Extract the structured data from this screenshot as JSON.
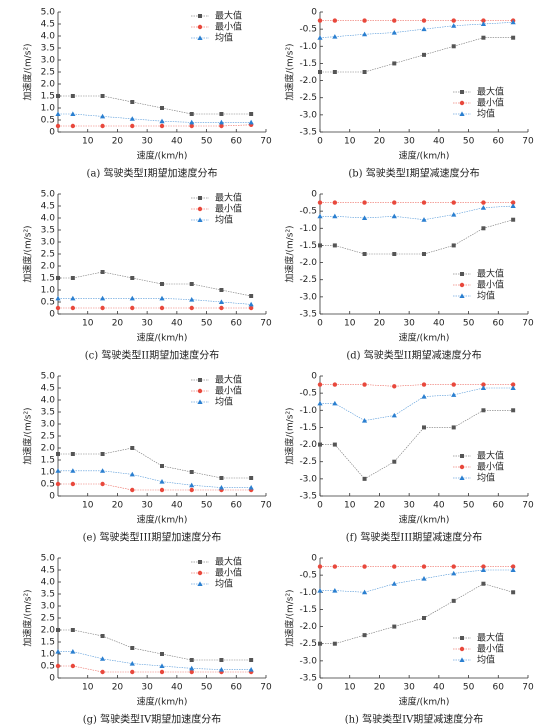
{
  "chart_data": [
    {
      "type": "line",
      "caption": "(a) 驾驶类型I期望加速度分布",
      "xlabel": "速度/(km/h)",
      "ylabel": "加速度/(m/s²)",
      "legend": "upper right",
      "x": [
        0,
        5,
        15,
        25,
        35,
        45,
        55,
        65
      ],
      "xlim": [
        0,
        70
      ],
      "xticks": [
        10,
        20,
        30,
        40,
        50,
        60,
        70
      ],
      "ylim": [
        0,
        5
      ],
      "yticks": [
        0,
        0.5,
        {
          "value": 1,
          "label": "1.0"
        },
        1.5,
        {
          "value": 2,
          "label": "2.0"
        },
        2.5,
        {
          "value": 3,
          "label": "3.0"
        },
        3.5,
        {
          "value": 4,
          "label": "4.0"
        },
        4.5,
        {
          "value": 5,
          "label": "5.0"
        }
      ],
      "series": [
        {
          "name": "最大值",
          "color": "#555555",
          "values": [
            1.5,
            1.5,
            1.5,
            1.25,
            1.0,
            0.75,
            0.75,
            0.75
          ]
        },
        {
          "name": "最小值",
          "color": "#e8483c",
          "values": [
            0.25,
            0.25,
            0.25,
            0.25,
            0.25,
            0.25,
            0.25,
            0.3
          ]
        },
        {
          "name": "均值",
          "color": "#2a7fd0",
          "values": [
            0.75,
            0.75,
            0.65,
            0.55,
            0.45,
            0.4,
            0.4,
            0.4
          ]
        }
      ]
    },
    {
      "type": "line",
      "caption": "(b) 驾驶类型I期望减速度分布",
      "xlabel": "速度/(km/h)",
      "ylabel": "加速度/(m/s²)",
      "legend": "lower right",
      "x": [
        0,
        5,
        15,
        25,
        35,
        45,
        55,
        65
      ],
      "xlim": [
        0,
        70
      ],
      "xticks": [
        0,
        10,
        20,
        30,
        40,
        50,
        60,
        70
      ],
      "ylim": [
        -3.5,
        0
      ],
      "yticks": [
        0,
        -0.5,
        {
          "value": -1,
          "label": "-1.0"
        },
        -1.5,
        {
          "value": -2,
          "label": "-2.0"
        },
        -2.5,
        {
          "value": -3,
          "label": "-3.0"
        },
        -3.5
      ],
      "series": [
        {
          "name": "最大值",
          "color": "#555555",
          "values": [
            -1.75,
            -1.75,
            -1.75,
            -1.5,
            -1.25,
            -1.0,
            -0.75,
            -0.75
          ]
        },
        {
          "name": "最小值",
          "color": "#e8483c",
          "values": [
            -0.25,
            -0.25,
            -0.25,
            -0.25,
            -0.25,
            -0.25,
            -0.25,
            -0.25
          ]
        },
        {
          "name": "均值",
          "color": "#2a7fd0",
          "values": [
            -0.75,
            -0.72,
            -0.65,
            -0.6,
            -0.5,
            -0.4,
            -0.35,
            -0.3
          ]
        }
      ]
    },
    {
      "type": "line",
      "caption": "(c) 驾驶类型II期望加速度分布",
      "xlabel": "速度/(km/h)",
      "ylabel": "加速度/(m/s²)",
      "legend": "upper right",
      "x": [
        0,
        5,
        15,
        25,
        35,
        45,
        55,
        65
      ],
      "xlim": [
        0,
        70
      ],
      "xticks": [
        10,
        20,
        30,
        40,
        50,
        60,
        70
      ],
      "ylim": [
        0,
        5
      ],
      "yticks": [
        0,
        0.5,
        {
          "value": 1,
          "label": "1.0"
        },
        1.5,
        {
          "value": 2,
          "label": "2.0"
        },
        2.5,
        {
          "value": 3,
          "label": "3.0"
        },
        3.5,
        {
          "value": 4,
          "label": "4.0"
        },
        4.5,
        {
          "value": 5,
          "label": "5.0"
        }
      ],
      "series": [
        {
          "name": "最大值",
          "color": "#555555",
          "values": [
            1.5,
            1.5,
            1.75,
            1.5,
            1.25,
            1.25,
            1.0,
            0.75
          ]
        },
        {
          "name": "最小值",
          "color": "#e8483c",
          "values": [
            0.25,
            0.25,
            0.25,
            0.25,
            0.25,
            0.25,
            0.25,
            0.25
          ]
        },
        {
          "name": "均值",
          "color": "#2a7fd0",
          "values": [
            0.65,
            0.65,
            0.65,
            0.65,
            0.65,
            0.6,
            0.5,
            0.4
          ]
        }
      ]
    },
    {
      "type": "line",
      "caption": "(d) 驾驶类型II期望减速度分布",
      "xlabel": "速度/(km/h)",
      "ylabel": "加速度/(m/s²)",
      "legend": "lower right",
      "x": [
        0,
        5,
        15,
        25,
        35,
        45,
        55,
        65
      ],
      "xlim": [
        0,
        70
      ],
      "xticks": [
        0,
        10,
        20,
        30,
        40,
        50,
        60,
        70
      ],
      "ylim": [
        -3.5,
        0
      ],
      "yticks": [
        0,
        -0.5,
        {
          "value": -1,
          "label": "-1.0"
        },
        -1.5,
        {
          "value": -2,
          "label": "-2.0"
        },
        -2.5,
        {
          "value": -3,
          "label": "-3.0"
        },
        -3.5
      ],
      "series": [
        {
          "name": "最大值",
          "color": "#555555",
          "values": [
            -1.5,
            -1.5,
            -1.75,
            -1.75,
            -1.75,
            -1.5,
            -1.0,
            -0.75
          ]
        },
        {
          "name": "最小值",
          "color": "#e8483c",
          "values": [
            -0.25,
            -0.25,
            -0.25,
            -0.25,
            -0.25,
            -0.25,
            -0.25,
            -0.25
          ]
        },
        {
          "name": "均值",
          "color": "#2a7fd0",
          "values": [
            -0.65,
            -0.65,
            -0.7,
            -0.65,
            -0.75,
            -0.6,
            -0.4,
            -0.35
          ]
        }
      ]
    },
    {
      "type": "line",
      "caption": "(e) 驾驶类型III期望加速度分布",
      "xlabel": "速度/(km/h)",
      "ylabel": "加速度/(m/s²)",
      "legend": "upper right",
      "x": [
        0,
        5,
        15,
        25,
        35,
        45,
        55,
        65
      ],
      "xlim": [
        0,
        70
      ],
      "xticks": [
        10,
        20,
        30,
        40,
        50,
        60,
        70
      ],
      "ylim": [
        0,
        5
      ],
      "yticks": [
        0,
        0.5,
        {
          "value": 1,
          "label": "1.0"
        },
        1.5,
        {
          "value": 2,
          "label": "2.0"
        },
        2.5,
        {
          "value": 3,
          "label": "3.0"
        },
        3.5,
        {
          "value": 4,
          "label": "4.0"
        },
        4.5,
        {
          "value": 5,
          "label": "5.0"
        }
      ],
      "series": [
        {
          "name": "最大值",
          "color": "#555555",
          "values": [
            1.75,
            1.75,
            1.75,
            2.0,
            1.25,
            1.0,
            0.75,
            0.75
          ]
        },
        {
          "name": "最小值",
          "color": "#e8483c",
          "values": [
            0.5,
            0.5,
            0.5,
            0.25,
            0.25,
            0.25,
            0.25,
            0.25
          ]
        },
        {
          "name": "均值",
          "color": "#2a7fd0",
          "values": [
            1.05,
            1.05,
            1.05,
            0.9,
            0.6,
            0.45,
            0.35,
            0.35
          ]
        }
      ]
    },
    {
      "type": "line",
      "caption": "(f) 驾驶类型III期望减速度分布",
      "xlabel": "速度/(km/h)",
      "ylabel": "加速度/(m/s²)",
      "legend": "lower right",
      "x": [
        0,
        5,
        15,
        25,
        35,
        45,
        55,
        65
      ],
      "xlim": [
        0,
        70
      ],
      "xticks": [
        0,
        10,
        20,
        30,
        40,
        50,
        60,
        70
      ],
      "ylim": [
        -3.5,
        0
      ],
      "yticks": [
        0,
        -0.5,
        {
          "value": -1,
          "label": "-1.0"
        },
        -1.5,
        {
          "value": -2,
          "label": "-2.0"
        },
        -2.5,
        {
          "value": -3,
          "label": "-3.0"
        },
        -3.5
      ],
      "series": [
        {
          "name": "最大值",
          "color": "#555555",
          "values": [
            -2.0,
            -2.0,
            -3.0,
            -2.5,
            -1.5,
            -1.5,
            -1.0,
            -1.0
          ]
        },
        {
          "name": "最小值",
          "color": "#e8483c",
          "values": [
            -0.25,
            -0.25,
            -0.25,
            -0.3,
            -0.25,
            -0.25,
            -0.25,
            -0.25
          ]
        },
        {
          "name": "均值",
          "color": "#2a7fd0",
          "values": [
            -0.8,
            -0.8,
            -1.3,
            -1.15,
            -0.6,
            -0.55,
            -0.35,
            -0.35
          ]
        }
      ]
    },
    {
      "type": "line",
      "caption": "(g) 驾驶类型IV期望加速度分布",
      "xlabel": "速度/(km/h)",
      "ylabel": "加速度/(m/s²)",
      "legend": "upper right",
      "x": [
        0,
        5,
        15,
        25,
        35,
        45,
        55,
        65
      ],
      "xlim": [
        0,
        70
      ],
      "xticks": [
        10,
        20,
        30,
        40,
        50,
        60,
        70
      ],
      "ylim": [
        0,
        5
      ],
      "yticks": [
        0,
        0.5,
        {
          "value": 1,
          "label": "1.0"
        },
        1.5,
        {
          "value": 2,
          "label": "2.0"
        },
        2.5,
        {
          "value": 3,
          "label": "3.0"
        },
        3.5,
        {
          "value": 4,
          "label": "4.0"
        },
        4.5,
        {
          "value": 5,
          "label": "5.0"
        }
      ],
      "series": [
        {
          "name": "最大值",
          "color": "#555555",
          "values": [
            2.0,
            2.0,
            1.75,
            1.25,
            1.0,
            0.75,
            0.75,
            0.75
          ]
        },
        {
          "name": "最小值",
          "color": "#e8483c",
          "values": [
            0.5,
            0.5,
            0.25,
            0.25,
            0.25,
            0.25,
            0.25,
            0.25
          ]
        },
        {
          "name": "均值",
          "color": "#2a7fd0",
          "values": [
            1.1,
            1.1,
            0.8,
            0.6,
            0.5,
            0.4,
            0.35,
            0.35
          ]
        }
      ]
    },
    {
      "type": "line",
      "caption": "(h) 驾驶类型IV期望减速度分布",
      "xlabel": "速度/(km/h)",
      "ylabel": "加速度/(m/s²)",
      "legend": "lower right",
      "x": [
        0,
        5,
        15,
        25,
        35,
        45,
        55,
        65
      ],
      "xlim": [
        0,
        70
      ],
      "xticks": [
        0,
        10,
        20,
        30,
        40,
        50,
        60,
        70
      ],
      "ylim": [
        -3.5,
        0
      ],
      "yticks": [
        0,
        -0.5,
        {
          "value": -1,
          "label": "-1.0"
        },
        -1.5,
        {
          "value": -2,
          "label": "-2.0"
        },
        -2.5,
        {
          "value": -3,
          "label": "-3.0"
        },
        -3.5
      ],
      "series": [
        {
          "name": "最大值",
          "color": "#555555",
          "values": [
            -2.5,
            -2.5,
            -2.25,
            -2.0,
            -1.75,
            -1.25,
            -0.75,
            -1.0
          ]
        },
        {
          "name": "最小值",
          "color": "#e8483c",
          "values": [
            -0.25,
            -0.25,
            -0.25,
            -0.25,
            -0.25,
            -0.25,
            -0.25,
            -0.25
          ]
        },
        {
          "name": "均值",
          "color": "#2a7fd0",
          "values": [
            -0.95,
            -0.95,
            -1.0,
            -0.75,
            -0.6,
            -0.45,
            -0.35,
            -0.35
          ]
        }
      ]
    }
  ]
}
